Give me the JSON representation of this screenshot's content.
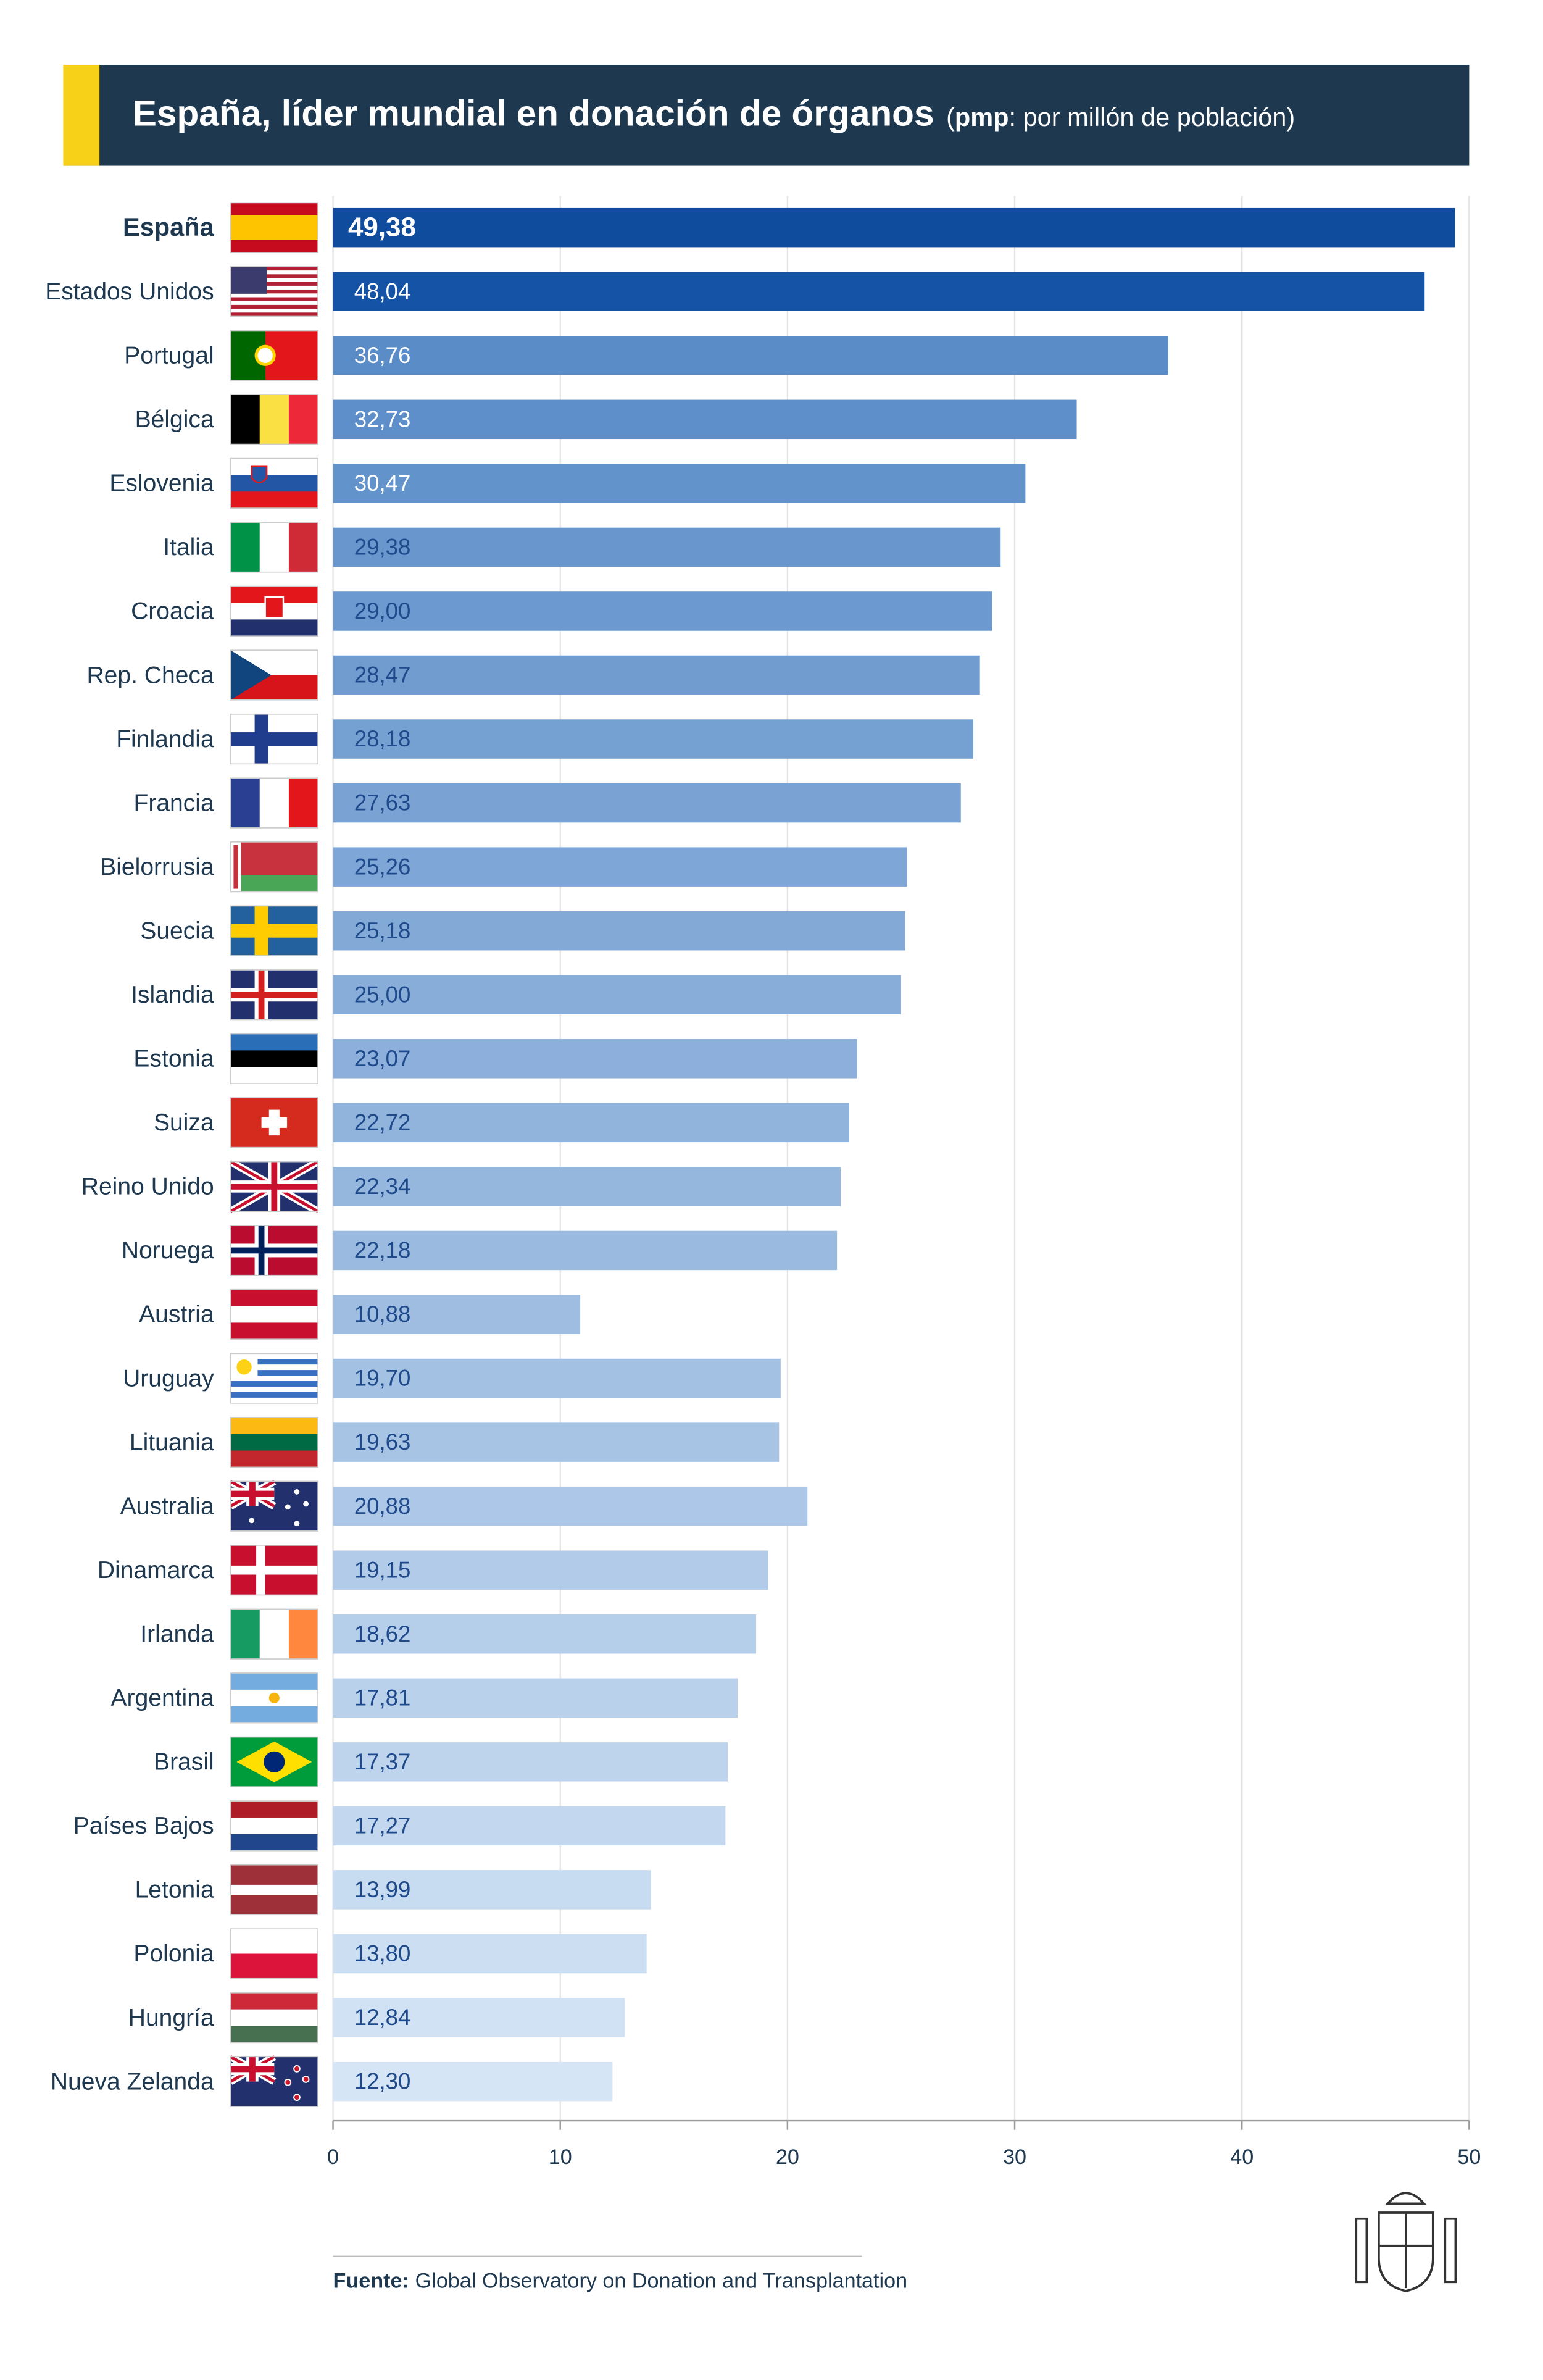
{
  "chart_data": {
    "type": "bar",
    "orientation": "horizontal",
    "title": "España, líder mundial en donación de órganos",
    "subtitle": [
      "(",
      "pmp",
      ": por millón de población)"
    ],
    "categories": [
      "España",
      "Estados Unidos",
      "Portugal",
      "Bélgica",
      "Eslovenia",
      "Italia",
      "Croacia",
      "Rep. Checa",
      "Finlandia",
      "Francia",
      "Bielorrusia",
      "Suecia",
      "Islandia",
      "Estonia",
      "Suiza",
      "Reino Unido",
      "Noruega",
      "Austria",
      "Uruguay",
      "Lituania",
      "Australia",
      "Dinamarca",
      "Irlanda",
      "Argentina",
      "Brasil",
      "Países Bajos",
      "Letonia",
      "Polonia",
      "Hungría",
      "Nueva Zelanda"
    ],
    "values": [
      49.38,
      48.04,
      36.76,
      32.73,
      30.47,
      29.38,
      29.0,
      28.47,
      28.18,
      27.63,
      25.26,
      25.18,
      25.0,
      23.07,
      22.72,
      22.34,
      22.18,
      10.88,
      19.7,
      19.63,
      20.88,
      19.15,
      18.62,
      17.81,
      17.37,
      17.27,
      13.99,
      13.8,
      12.84,
      12.3
    ],
    "value_labels": [
      "49,38",
      "48,04",
      "36,76",
      "32,73",
      "30,47",
      "29,38",
      "29,00",
      "28,47",
      "28,18",
      "27,63",
      "25,26",
      "25,18",
      "25,00",
      "23,07",
      "22,72",
      "22,34",
      "22,18",
      "10,88",
      "19,70",
      "19,63",
      "20,88",
      "19,15",
      "18,62",
      "17,81",
      "17,37",
      "17,27",
      "13,99",
      "13,80",
      "12,84",
      "12,30"
    ],
    "colors": [
      "#0f4c9e",
      "#1553a6",
      "#5a8cc8",
      "#5f8fca",
      "#6393cb",
      "#6896cd",
      "#6c99cf",
      "#719cd0",
      "#75a0d2",
      "#7aa3d4",
      "#7ea6d6",
      "#83aad7",
      "#88add9",
      "#8cb0db",
      "#91b4dc",
      "#95b7de",
      "#9abae0",
      "#9ebde1",
      "#a3c1e3",
      "#a7c4e5",
      "#acc7e7",
      "#b1cbe8",
      "#b5ceea",
      "#bad1ec",
      "#bed4ed",
      "#c3d8ef",
      "#c7dbf1",
      "#ccdef2",
      "#d0e2f4",
      "#d5e5f6"
    ],
    "highlight_index": 0,
    "xlim": [
      0,
      50
    ],
    "xticks": [
      0,
      10,
      20,
      30,
      40,
      50
    ],
    "grid": true,
    "source_label": "Fuente:",
    "source": "Global Observatory on Donation and Transplantation"
  }
}
